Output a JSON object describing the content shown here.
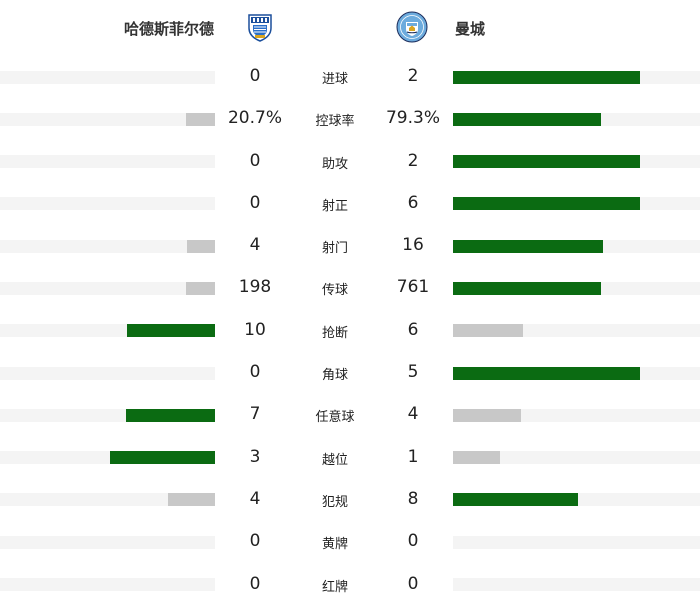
{
  "home_team": {
    "name": "哈德斯菲尔德",
    "crest_icon": "huddersfield-crest-icon"
  },
  "away_team": {
    "name": "曼城",
    "crest_icon": "man-city-crest-icon"
  },
  "colors": {
    "leader_bar": "#0b6b12",
    "trailer_bar": "#c8c8c8",
    "track": "#f4f4f4"
  },
  "stats": [
    {
      "label": "进球",
      "home": "0",
      "away": "2",
      "home_share": 0.0,
      "away_share": 1.0
    },
    {
      "label": "控球率",
      "home": "20.7%",
      "away": "79.3%",
      "home_share": 0.207,
      "away_share": 0.793
    },
    {
      "label": "助攻",
      "home": "0",
      "away": "2",
      "home_share": 0.0,
      "away_share": 1.0
    },
    {
      "label": "射正",
      "home": "0",
      "away": "6",
      "home_share": 0.0,
      "away_share": 1.0
    },
    {
      "label": "射门",
      "home": "4",
      "away": "16",
      "home_share": 0.2,
      "away_share": 0.8
    },
    {
      "label": "传球",
      "home": "198",
      "away": "761",
      "home_share": 0.206,
      "away_share": 0.794
    },
    {
      "label": "抢断",
      "home": "10",
      "away": "6",
      "home_share": 0.625,
      "away_share": 0.375
    },
    {
      "label": "角球",
      "home": "0",
      "away": "5",
      "home_share": 0.0,
      "away_share": 1.0
    },
    {
      "label": "任意球",
      "home": "7",
      "away": "4",
      "home_share": 0.636,
      "away_share": 0.364
    },
    {
      "label": "越位",
      "home": "3",
      "away": "1",
      "home_share": 0.75,
      "away_share": 0.25
    },
    {
      "label": "犯规",
      "home": "4",
      "away": "8",
      "home_share": 0.333,
      "away_share": 0.667
    },
    {
      "label": "黄牌",
      "home": "0",
      "away": "0",
      "home_share": 0.0,
      "away_share": 0.0
    },
    {
      "label": "红牌",
      "home": "0",
      "away": "0",
      "home_share": 0.0,
      "away_share": 0.0
    }
  ]
}
